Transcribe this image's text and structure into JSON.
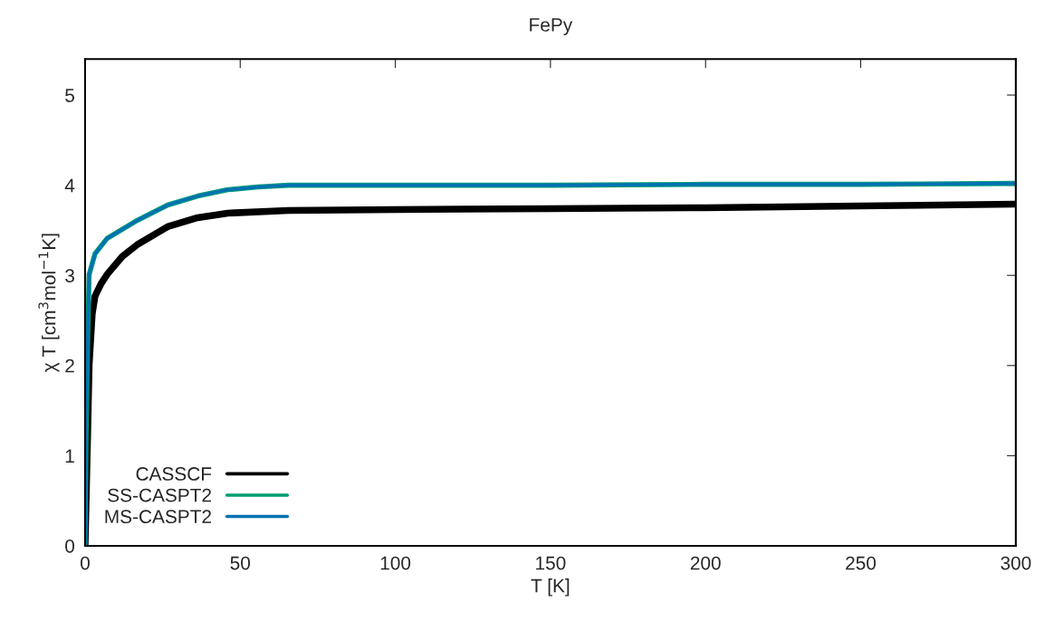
{
  "chart_data": {
    "type": "line",
    "title": "FePy",
    "xlabel": "T [K]",
    "ylabel": "χ T [cm$^{3}$mol$^{−1}$K]",
    "xlim": [
      0,
      300
    ],
    "ylim": [
      0,
      5.4
    ],
    "xticks": [
      0,
      50,
      100,
      150,
      200,
      250,
      300
    ],
    "yticks": [
      0,
      1,
      2,
      3,
      4,
      5
    ],
    "grid": false,
    "legend": "bottom left",
    "line_style": "solid",
    "marker": "none",
    "series": [
      {
        "name": "CASSCF",
        "color": "#000000",
        "x": [
          0,
          0.8,
          1.3,
          2.3,
          3.2,
          5.2,
          7.1,
          12,
          16.8,
          26.6,
          36.3,
          46,
          65.5,
          100,
          150,
          200,
          250,
          300
        ],
        "values": [
          0,
          1.2,
          2.0,
          2.57,
          2.77,
          2.91,
          3.01,
          3.21,
          3.34,
          3.54,
          3.64,
          3.69,
          3.72,
          3.73,
          3.74,
          3.75,
          3.77,
          3.79
        ]
      },
      {
        "name": "SS-CASPT2",
        "color": "#009e73",
        "x": [
          0,
          0.3,
          0.8,
          1.3,
          3.2,
          7.1,
          16.8,
          26.6,
          36.3,
          46,
          55.7,
          65.5,
          100,
          150,
          200,
          250,
          300
        ],
        "values": [
          0,
          1.2,
          2.24,
          3.01,
          3.24,
          3.41,
          3.61,
          3.78,
          3.88,
          3.95,
          3.98,
          4.0,
          4.0,
          4.0,
          4.01,
          4.01,
          4.02
        ]
      },
      {
        "name": "MS-CASPT2",
        "color": "#0072b2",
        "x": [
          0,
          0.3,
          0.8,
          1.3,
          3.2,
          7.1,
          16.8,
          26.6,
          36.3,
          46,
          55.7,
          65.5,
          100,
          150,
          200,
          250,
          300
        ],
        "values": [
          0,
          1.2,
          2.24,
          3.01,
          3.24,
          3.41,
          3.61,
          3.78,
          3.88,
          3.95,
          3.98,
          4.0,
          4.0,
          4.0,
          4.01,
          4.01,
          4.02
        ]
      }
    ]
  }
}
